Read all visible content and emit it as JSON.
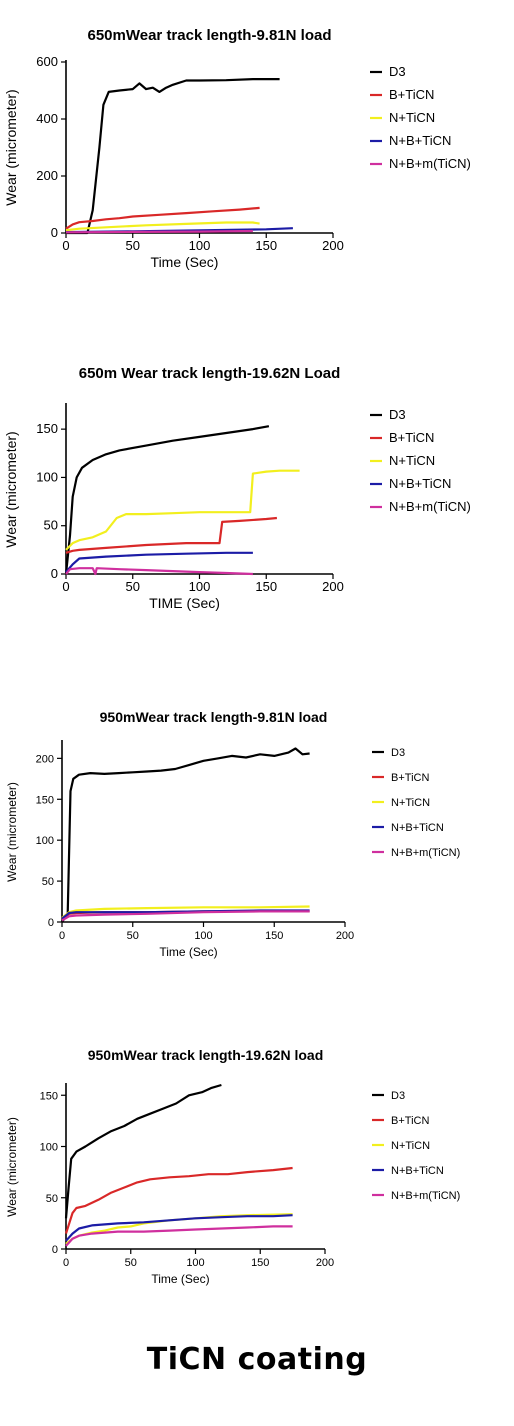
{
  "colors": {
    "D3": "#000000",
    "B+TiCN": "#d92828",
    "N+TiCN": "#f2ef1e",
    "N+B+TiCN": "#1c1ca6",
    "N+B+m(TiCN)": "#cf2f9e"
  },
  "caption": "TiCN coating",
  "chart_data": [
    {
      "type": "line",
      "title": "650mWear track length-9.81N load",
      "xlabel": "Time (Sec)",
      "ylabel": "Wear (micrometer)",
      "xlim": [
        0,
        200
      ],
      "ylim": [
        0,
        600
      ],
      "xticks": [
        0,
        50,
        100,
        150,
        200
      ],
      "yticks": [
        0,
        200,
        400,
        600
      ],
      "grid": false,
      "legend": "right",
      "series": [
        {
          "name": "D3",
          "points": [
            [
              0,
              0
            ],
            [
              16,
              0
            ],
            [
              20,
              80
            ],
            [
              25,
              300
            ],
            [
              28,
              450
            ],
            [
              32,
              495
            ],
            [
              40,
              500
            ],
            [
              50,
              505
            ],
            [
              55,
              525
            ],
            [
              60,
              505
            ],
            [
              65,
              510
            ],
            [
              70,
              495
            ],
            [
              75,
              510
            ],
            [
              80,
              520
            ],
            [
              90,
              535
            ],
            [
              100,
              535
            ],
            [
              120,
              536
            ],
            [
              140,
              540
            ],
            [
              160,
              540
            ]
          ]
        },
        {
          "name": "B+TiCN",
          "points": [
            [
              0,
              15
            ],
            [
              5,
              30
            ],
            [
              10,
              38
            ],
            [
              20,
              42
            ],
            [
              30,
              48
            ],
            [
              40,
              52
            ],
            [
              50,
              58
            ],
            [
              70,
              64
            ],
            [
              90,
              70
            ],
            [
              110,
              76
            ],
            [
              130,
              82
            ],
            [
              145,
              88
            ]
          ]
        },
        {
          "name": "N+TiCN",
          "points": [
            [
              0,
              10
            ],
            [
              10,
              15
            ],
            [
              30,
              20
            ],
            [
              60,
              27
            ],
            [
              90,
              32
            ],
            [
              120,
              37
            ],
            [
              140,
              37
            ],
            [
              145,
              33
            ]
          ]
        },
        {
          "name": "N+B+TiCN",
          "points": [
            [
              0,
              3
            ],
            [
              50,
              6
            ],
            [
              100,
              9
            ],
            [
              150,
              13
            ],
            [
              170,
              17
            ]
          ]
        },
        {
          "name": "N+B+m(TiCN)",
          "points": [
            [
              0,
              2
            ],
            [
              50,
              4
            ],
            [
              100,
              5
            ],
            [
              140,
              7
            ]
          ]
        }
      ]
    },
    {
      "type": "line",
      "title": "650m Wear track length-19.62N Load",
      "xlabel": "TIME (Sec)",
      "ylabel": "Wear (micrometer)",
      "xlim": [
        0,
        200
      ],
      "ylim": [
        0,
        175
      ],
      "xticks": [
        0,
        50,
        100,
        150,
        200
      ],
      "yticks": [
        0,
        50,
        100,
        150
      ],
      "grid": false,
      "legend": "right",
      "series": [
        {
          "name": "D3",
          "points": [
            [
              0,
              0
            ],
            [
              3,
              40
            ],
            [
              5,
              80
            ],
            [
              8,
              100
            ],
            [
              12,
              110
            ],
            [
              20,
              118
            ],
            [
              30,
              124
            ],
            [
              40,
              128
            ],
            [
              60,
              133
            ],
            [
              80,
              138
            ],
            [
              100,
              142
            ],
            [
              120,
              146
            ],
            [
              140,
              150
            ],
            [
              152,
              153
            ]
          ]
        },
        {
          "name": "B+TiCN",
          "points": [
            [
              0,
              22
            ],
            [
              5,
              24
            ],
            [
              10,
              25
            ],
            [
              30,
              27
            ],
            [
              60,
              30
            ],
            [
              90,
              32
            ],
            [
              115,
              32
            ],
            [
              117,
              54
            ],
            [
              130,
              55
            ],
            [
              150,
              57
            ],
            [
              158,
              58
            ]
          ]
        },
        {
          "name": "N+TiCN",
          "points": [
            [
              0,
              25
            ],
            [
              5,
              32
            ],
            [
              10,
              35
            ],
            [
              20,
              38
            ],
            [
              30,
              44
            ],
            [
              38,
              58
            ],
            [
              45,
              62
            ],
            [
              60,
              62
            ],
            [
              80,
              63
            ],
            [
              100,
              64
            ],
            [
              120,
              64
            ],
            [
              138,
              64
            ],
            [
              140,
              104
            ],
            [
              150,
              106
            ],
            [
              160,
              107
            ],
            [
              175,
              107
            ]
          ]
        },
        {
          "name": "N+B+TiCN",
          "points": [
            [
              0,
              2
            ],
            [
              5,
              10
            ],
            [
              10,
              16
            ],
            [
              30,
              18
            ],
            [
              60,
              20
            ],
            [
              90,
              21
            ],
            [
              120,
              22
            ],
            [
              140,
              22
            ]
          ]
        },
        {
          "name": "N+B+m(TiCN)",
          "points": [
            [
              0,
              0
            ],
            [
              3,
              5
            ],
            [
              10,
              6
            ],
            [
              20,
              6
            ],
            [
              22,
              0
            ],
            [
              23,
              6
            ],
            [
              40,
              5
            ],
            [
              60,
              4
            ],
            [
              80,
              3
            ],
            [
              100,
              2
            ],
            [
              120,
              1
            ],
            [
              140,
              0
            ]
          ]
        }
      ]
    },
    {
      "type": "line",
      "title": "950mWear track length-9.81N load",
      "xlabel": "Time (Sec)",
      "ylabel": "Wear (micrometer)",
      "xlim": [
        0,
        200
      ],
      "ylim": [
        0,
        220
      ],
      "xticks": [
        0,
        50,
        100,
        150,
        200
      ],
      "yticks": [
        0,
        50,
        100,
        150,
        200
      ],
      "grid": false,
      "legend": "right",
      "series": [
        {
          "name": "D3",
          "points": [
            [
              0,
              0
            ],
            [
              4,
              10
            ],
            [
              6,
              160
            ],
            [
              8,
              175
            ],
            [
              12,
              180
            ],
            [
              20,
              182
            ],
            [
              30,
              181
            ],
            [
              40,
              182
            ],
            [
              50,
              183
            ],
            [
              60,
              184
            ],
            [
              70,
              185
            ],
            [
              80,
              187
            ],
            [
              90,
              192
            ],
            [
              100,
              197
            ],
            [
              110,
              200
            ],
            [
              120,
              203
            ],
            [
              130,
              201
            ],
            [
              140,
              205
            ],
            [
              150,
              203
            ],
            [
              160,
              207
            ],
            [
              165,
              212
            ],
            [
              170,
              205
            ],
            [
              175,
              206
            ]
          ]
        },
        {
          "name": "B+TiCN",
          "points": [
            [
              0,
              3
            ],
            [
              5,
              10
            ],
            [
              10,
              11
            ],
            [
              30,
              12
            ],
            [
              60,
              12
            ],
            [
              100,
              13
            ],
            [
              140,
              13
            ],
            [
              175,
              13
            ]
          ]
        },
        {
          "name": "N+TiCN",
          "points": [
            [
              0,
              5
            ],
            [
              5,
              12
            ],
            [
              10,
              14
            ],
            [
              30,
              16
            ],
            [
              60,
              17
            ],
            [
              100,
              18
            ],
            [
              140,
              18
            ],
            [
              175,
              19
            ]
          ]
        },
        {
          "name": "N+B+TiCN",
          "points": [
            [
              0,
              4
            ],
            [
              5,
              11
            ],
            [
              10,
              12
            ],
            [
              30,
              12
            ],
            [
              60,
              12
            ],
            [
              100,
              13
            ],
            [
              140,
              14
            ],
            [
              175,
              14
            ]
          ]
        },
        {
          "name": "N+B+m(TiCN)",
          "points": [
            [
              0,
              2
            ],
            [
              5,
              7
            ],
            [
              10,
              8
            ],
            [
              30,
              9
            ],
            [
              60,
              10
            ],
            [
              100,
              12
            ],
            [
              140,
              13
            ],
            [
              175,
              13
            ]
          ]
        }
      ]
    },
    {
      "type": "line",
      "title": "950mWear track length-19.62N load",
      "xlabel": "Time (Sec)",
      "ylabel": "Wear (micrometer)",
      "xlim": [
        0,
        200
      ],
      "ylim": [
        0,
        160
      ],
      "xticks": [
        0,
        50,
        100,
        150,
        200
      ],
      "yticks": [
        0,
        50,
        100,
        150
      ],
      "grid": false,
      "legend": "right",
      "series": [
        {
          "name": "D3",
          "points": [
            [
              0,
              30
            ],
            [
              2,
              60
            ],
            [
              4,
              88
            ],
            [
              8,
              95
            ],
            [
              15,
              100
            ],
            [
              25,
              108
            ],
            [
              35,
              115
            ],
            [
              45,
              120
            ],
            [
              55,
              127
            ],
            [
              65,
              132
            ],
            [
              75,
              137
            ],
            [
              85,
              142
            ],
            [
              95,
              150
            ],
            [
              105,
              153
            ],
            [
              112,
              157
            ],
            [
              120,
              160
            ]
          ]
        },
        {
          "name": "B+TiCN",
          "points": [
            [
              0,
              15
            ],
            [
              5,
              35
            ],
            [
              8,
              40
            ],
            [
              15,
              42
            ],
            [
              25,
              48
            ],
            [
              35,
              55
            ],
            [
              45,
              60
            ],
            [
              55,
              65
            ],
            [
              65,
              68
            ],
            [
              80,
              70
            ],
            [
              95,
              71
            ],
            [
              110,
              73
            ],
            [
              125,
              73
            ],
            [
              140,
              75
            ],
            [
              160,
              77
            ],
            [
              175,
              79
            ]
          ]
        },
        {
          "name": "N+TiCN",
          "points": [
            [
              0,
              5
            ],
            [
              5,
              10
            ],
            [
              10,
              13
            ],
            [
              20,
              16
            ],
            [
              30,
              18
            ],
            [
              40,
              21
            ],
            [
              50,
              22
            ],
            [
              60,
              25
            ],
            [
              80,
              28
            ],
            [
              100,
              30
            ],
            [
              120,
              32
            ],
            [
              140,
              33
            ],
            [
              175,
              34
            ]
          ]
        },
        {
          "name": "N+B+TiCN",
          "points": [
            [
              0,
              8
            ],
            [
              5,
              15
            ],
            [
              10,
              20
            ],
            [
              20,
              23
            ],
            [
              40,
              25
            ],
            [
              60,
              26
            ],
            [
              80,
              28
            ],
            [
              100,
              30
            ],
            [
              120,
              31
            ],
            [
              140,
              32
            ],
            [
              160,
              32
            ],
            [
              175,
              33
            ]
          ]
        },
        {
          "name": "N+B+m(TiCN)",
          "points": [
            [
              0,
              3
            ],
            [
              5,
              10
            ],
            [
              10,
              13
            ],
            [
              20,
              15
            ],
            [
              40,
              17
            ],
            [
              60,
              17
            ],
            [
              80,
              18
            ],
            [
              100,
              19
            ],
            [
              120,
              20
            ],
            [
              140,
              21
            ],
            [
              160,
              22
            ],
            [
              175,
              22
            ]
          ]
        }
      ]
    }
  ]
}
